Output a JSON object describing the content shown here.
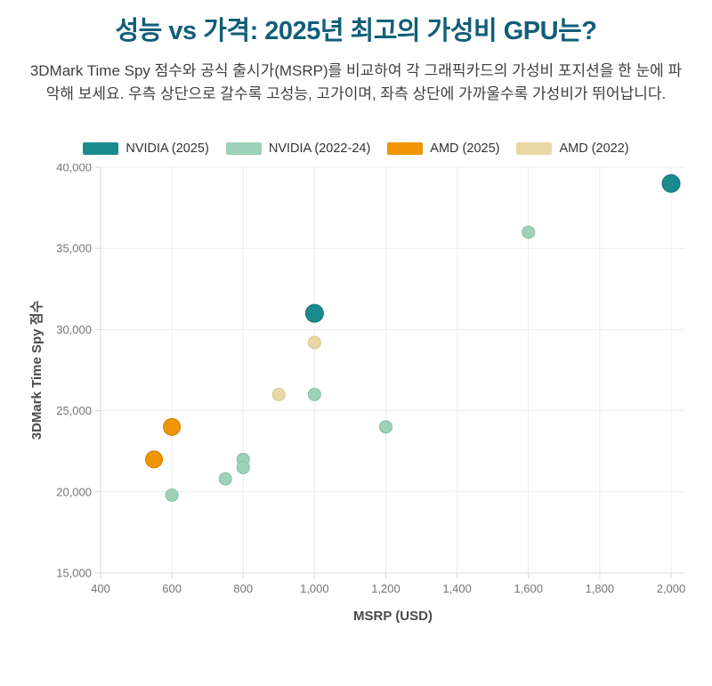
{
  "header": {
    "title": "성능 vs 가격: 2025년 최고의 가성비 GPU는?",
    "subtitle": "3DMark Time Spy 점수와 공식 출시가(MSRP)를 비교하여 각 그래픽카드의 가성비 포지션을 한 눈에 파악해 보세요. 우측 상단으로 갈수록 고성능, 고가이며, 좌측 상단에 가까울수록 가성비가 뛰어납니다."
  },
  "colors": {
    "title": "#115e78",
    "subtitle_text": "#3f3f3f",
    "legend_text": "#333333",
    "tick_text": "#757575",
    "axis_title_text": "#4a4a4a",
    "grid": "#ececec",
    "axis_line": "#d9d9d9",
    "background": "#ffffff"
  },
  "chart_data": {
    "type": "scatter",
    "title": "성능 vs 가격: 2025년 최고의 가성비 GPU는?",
    "xlabel": "MSRP (USD)",
    "ylabel": "3DMark Time Spy 점수",
    "xlim": [
      400,
      2050
    ],
    "ylim": [
      15000,
      40000
    ],
    "x_ticks": [
      400,
      600,
      800,
      1000,
      1200,
      1400,
      1600,
      1800,
      2000
    ],
    "y_ticks": [
      15000,
      20000,
      25000,
      30000,
      35000,
      40000
    ],
    "grid": true,
    "legend_position": "top",
    "series": [
      {
        "name": "NVIDIA (2025)",
        "color": "#198b8e",
        "edge_color": "#137578",
        "marker_radius": 10,
        "points": [
          {
            "x": 2000,
            "y": 39000
          },
          {
            "x": 1000,
            "y": 31000
          }
        ]
      },
      {
        "name": "NVIDIA (2022-24)",
        "color": "#9dd1b8",
        "edge_color": "#85c0a5",
        "marker_radius": 7,
        "points": [
          {
            "x": 1600,
            "y": 36000
          },
          {
            "x": 1000,
            "y": 26000
          },
          {
            "x": 1200,
            "y": 24000
          },
          {
            "x": 800,
            "y": 22000
          },
          {
            "x": 800,
            "y": 21500
          },
          {
            "x": 750,
            "y": 20800
          },
          {
            "x": 600,
            "y": 19800
          }
        ]
      },
      {
        "name": "AMD (2025)",
        "color": "#ee9405",
        "edge_color": "#d37f00",
        "marker_radius": 9.5,
        "points": [
          {
            "x": 600,
            "y": 24000
          },
          {
            "x": 550,
            "y": 22000
          }
        ]
      },
      {
        "name": "AMD (2022)",
        "color": "#e9d8a6",
        "edge_color": "#d8c48e",
        "marker_radius": 7,
        "points": [
          {
            "x": 1000,
            "y": 29200
          },
          {
            "x": 900,
            "y": 26000
          }
        ]
      }
    ]
  }
}
